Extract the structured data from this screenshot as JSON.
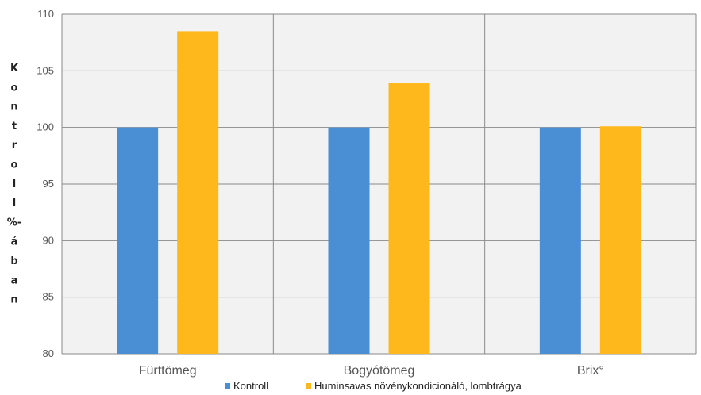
{
  "chart_data": {
    "type": "bar",
    "categories": [
      "Fürttömeg",
      "Bogyótömeg",
      "Brix°"
    ],
    "series": [
      {
        "name": "Kontroll",
        "values": [
          100,
          100,
          100
        ],
        "color": "#4a8fd4"
      },
      {
        "name": "Huminsavas növénykondicionáló, lombtrágya",
        "values": [
          108.5,
          103.9,
          100.1
        ],
        "color": "#ffb81c"
      }
    ],
    "ylabel": "Kontroll%-ában",
    "ylabel_chars": [
      "K",
      "o",
      "n",
      "t",
      "r",
      "o",
      "l",
      "l",
      "%-",
      "á",
      "b",
      "a",
      "n"
    ],
    "ylim": [
      80,
      110
    ],
    "yticks": [
      80,
      85,
      90,
      95,
      100,
      105,
      110
    ],
    "grid": true,
    "legend_position": "bottom-center",
    "plot_background": "#f2f2f2",
    "gridline_color": "#8a8a8a"
  }
}
